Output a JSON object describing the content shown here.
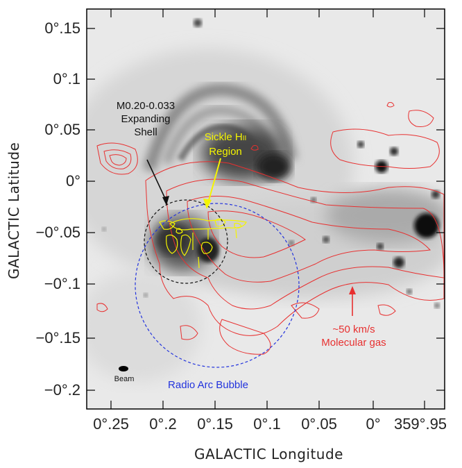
{
  "axes": {
    "xlabel": "GALACTIC Longitude",
    "ylabel": "GALACTIC Latitude",
    "y_ticks": [
      "0°.15",
      "0°.1",
      "0°.05",
      "0°",
      "−0°.05",
      "−0°.1",
      "−0°.15",
      "−0°.2"
    ],
    "x_ticks": [
      "0°.25",
      "0°.2",
      "0°.15",
      "0°.1",
      "0°.05",
      "0°",
      "359°.95"
    ]
  },
  "annotations": {
    "shell_line1": "M0.20-0.033",
    "shell_line2": "Expanding",
    "shell_line3": "Shell",
    "sickle_line1": "Sickle H",
    "sickle_sub": "II",
    "sickle_line2": "Region",
    "gas_line1": "~50 km/s",
    "gas_line2": "Molecular gas",
    "bubble": "Radio Arc Bubble",
    "beam": "Beam"
  },
  "colors": {
    "shell": "#111111",
    "sickle": "#f5f500",
    "gas": "#e83030",
    "bubble": "#2233dd"
  }
}
